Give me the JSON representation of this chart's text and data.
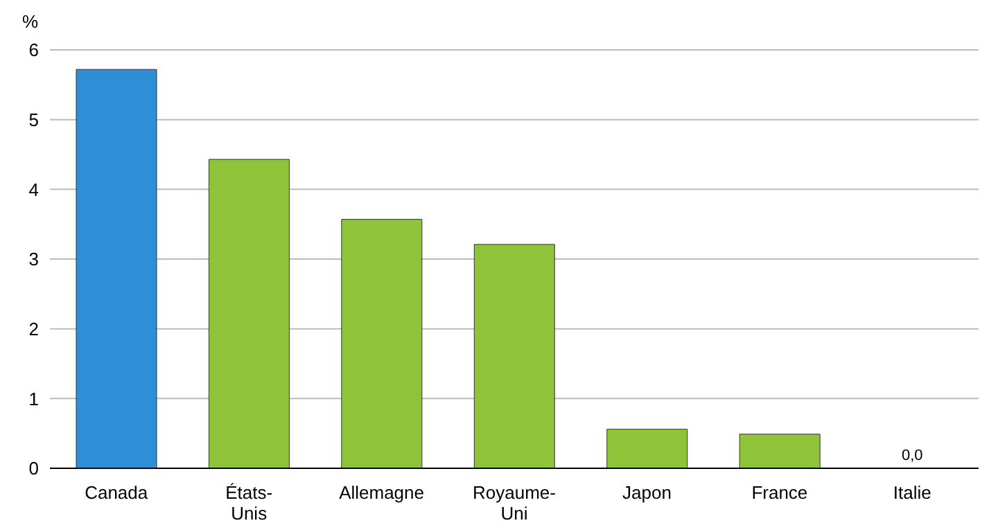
{
  "chart_data": {
    "type": "bar",
    "ylabel": "%",
    "categories": [
      "Canada",
      "États-Unis",
      "Allemagne",
      "Royaume-Uni",
      "Japon",
      "France",
      "Italie"
    ],
    "values": [
      5.72,
      4.43,
      3.57,
      3.21,
      0.56,
      0.49,
      0.0
    ],
    "colors": [
      "#2f8fd6",
      "#8fc43a",
      "#8fc43a",
      "#8fc43a",
      "#8fc43a",
      "#8fc43a",
      "#8fc43a"
    ],
    "value_labels": [
      null,
      null,
      null,
      null,
      null,
      null,
      "0,0"
    ],
    "ylim": [
      0,
      6
    ],
    "yticks": [
      0,
      1,
      2,
      3,
      4,
      5,
      6
    ],
    "grid": "y"
  }
}
